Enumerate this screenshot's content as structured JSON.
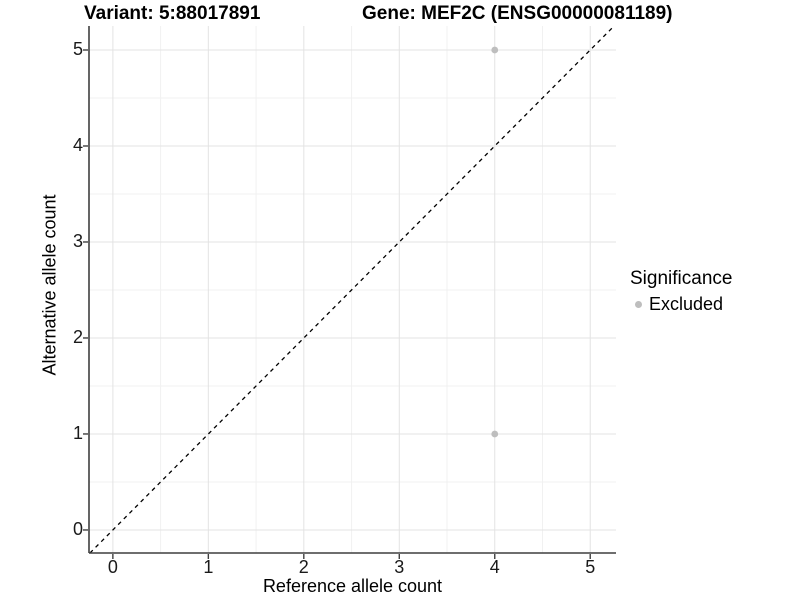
{
  "chart_data": {
    "type": "scatter",
    "title_left": "Variant: 5:88017891",
    "title_right": "Gene: MEF2C (ENSG00000081189)",
    "xlabel": "Reference allele count",
    "ylabel": "Alternative allele count",
    "x_ticks": [
      0,
      1,
      2,
      3,
      4,
      5
    ],
    "y_ticks": [
      0,
      1,
      2,
      3,
      4,
      5
    ],
    "xlim": [
      -0.25,
      5.27
    ],
    "ylim": [
      -0.24,
      5.25
    ],
    "grid": "major and minor gridlines on",
    "legend_position": "right",
    "series": [
      {
        "name": "Excluded",
        "color": "#bebebe",
        "points": [
          {
            "x": 4,
            "y": 5
          },
          {
            "x": 4,
            "y": 1
          }
        ]
      }
    ],
    "reference_line": {
      "slope": 1,
      "intercept": 0,
      "style": "dashed",
      "color": "#000000"
    },
    "legend": {
      "title": "Significance",
      "items": [
        {
          "label": "Excluded",
          "color": "#bebebe"
        }
      ]
    }
  },
  "colors": {
    "background": "#ffffff",
    "grid_major": "#e3e3e3",
    "grid_minor": "#f1f1f1",
    "axis_line": "#3f3f3f",
    "tick_text": "#1a1a1a",
    "point": "#bebebe"
  }
}
